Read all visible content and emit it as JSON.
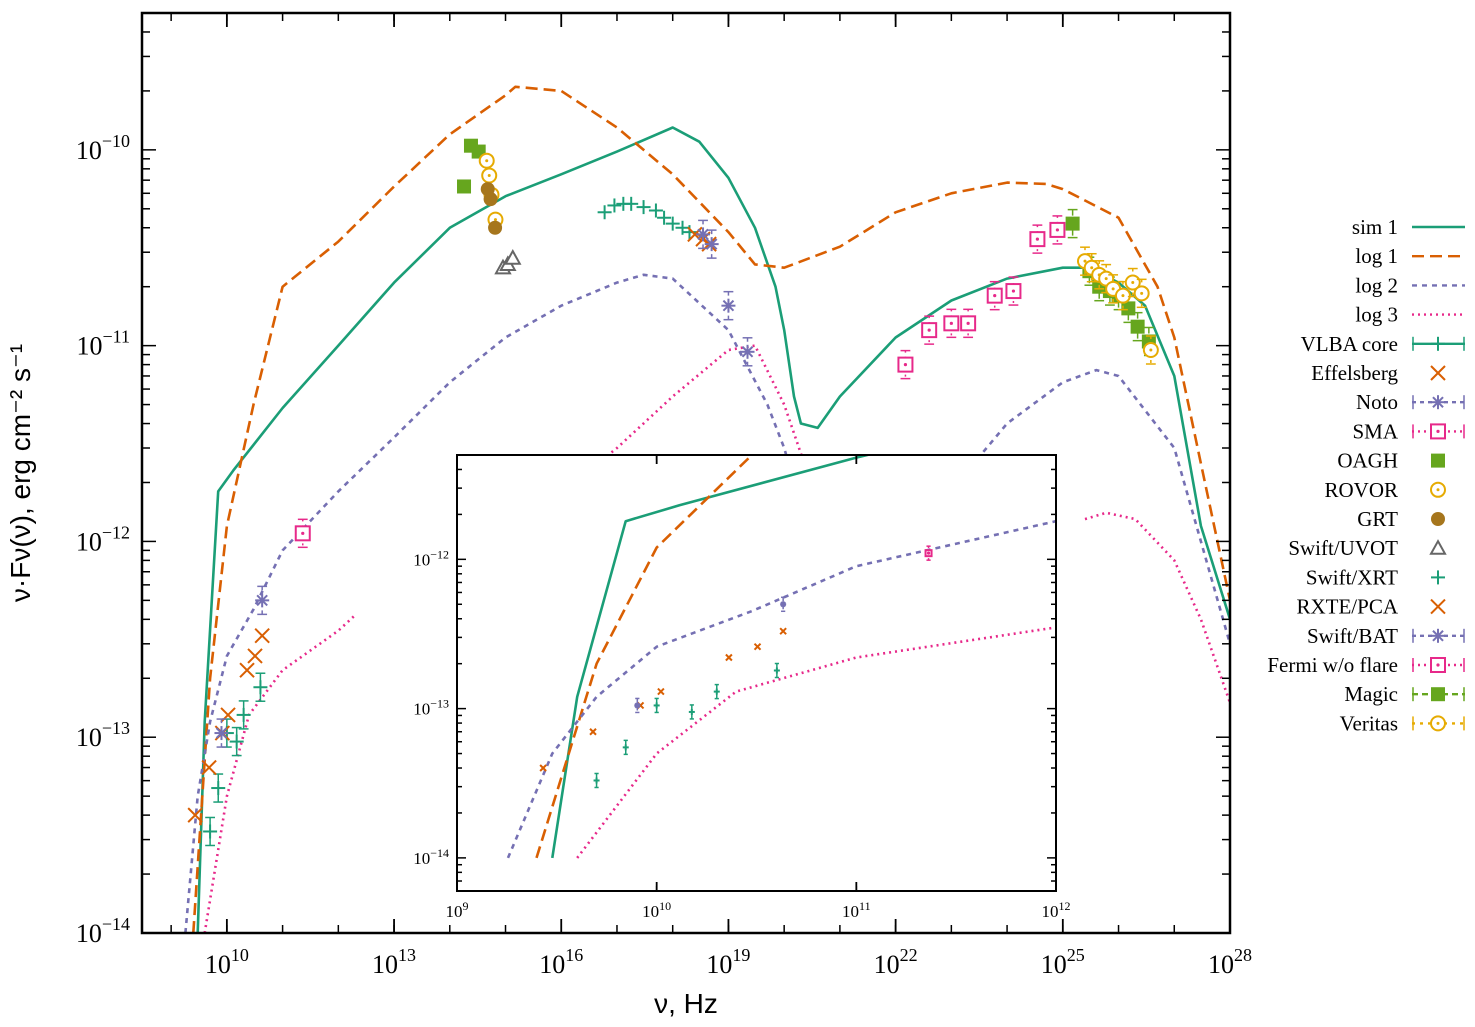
{
  "chart_data": {
    "type": "scatter",
    "xlabel": "ν, Hz",
    "ylabel": "ν·Fν(ν), erg cm⁻² s⁻¹",
    "x_scale": "log",
    "y_scale": "log",
    "xlim": [
      300000000.0,
      1e+28
    ],
    "ylim": [
      1e-14,
      5e-10
    ],
    "x_ticks": [
      {
        "v": 10000000000.0,
        "m": "10",
        "e": "10"
      },
      {
        "v": 10000000000000.0,
        "m": "10",
        "e": "13"
      },
      {
        "v": 1e+16,
        "m": "10",
        "e": "16"
      },
      {
        "v": 1e+19,
        "m": "10",
        "e": "19"
      },
      {
        "v": 1e+22,
        "m": "10",
        "e": "22"
      },
      {
        "v": 1e+25,
        "m": "10",
        "e": "25"
      },
      {
        "v": 1e+28,
        "m": "10",
        "e": "28"
      }
    ],
    "y_ticks": [
      {
        "v": 1e-14,
        "m": "10",
        "e": "−14"
      },
      {
        "v": 1e-13,
        "m": "10",
        "e": "−13"
      },
      {
        "v": 1e-12,
        "m": "10",
        "e": "−12"
      },
      {
        "v": 1e-11,
        "m": "10",
        "e": "−11"
      },
      {
        "v": 1e-10,
        "m": "10",
        "e": "−10"
      }
    ],
    "legend_position": "right, outside plot",
    "lines": [
      {
        "name": "sim 1",
        "color": "#1b9e77",
        "dash": "",
        "width": 2.6,
        "points": [
          [
            3000000000.0,
            1e-14
          ],
          [
            4000000000.0,
            1.2e-13
          ],
          [
            7000000000.0,
            1.8e-12
          ],
          [
            13000000000.0,
            2.3e-12
          ],
          [
            100000000000.0,
            4.8e-12
          ],
          [
            1000000000000.0,
            1e-11
          ],
          [
            10000000000000.0,
            2.1e-11
          ],
          [
            100000000000000.0,
            4e-11
          ],
          [
            1000000000000000.0,
            5.8e-11
          ],
          [
            1e+16,
            7.5e-11
          ],
          [
            1e+17,
            9.8e-11
          ],
          [
            1e+18,
            1.3e-10
          ],
          [
            3e+18,
            1.1e-10
          ],
          [
            1e+19,
            7.2e-11
          ],
          [
            3e+19,
            4e-11
          ],
          [
            7e+19,
            2e-11
          ],
          [
            1e+20,
            1.2e-11
          ],
          [
            1.5e+20,
            5.5e-12
          ],
          [
            2e+20,
            4e-12
          ],
          [
            4e+20,
            3.8e-12
          ],
          [
            1e+21,
            5.5e-12
          ],
          [
            1e+22,
            1.1e-11
          ],
          [
            1e+23,
            1.7e-11
          ],
          [
            1e+24,
            2.2e-11
          ],
          [
            1e+25,
            2.5e-11
          ],
          [
            3e+25,
            2.5e-11
          ],
          [
            1e+26,
            2.1e-11
          ],
          [
            3e+26,
            1.6e-11
          ],
          [
            1e+27,
            7e-12
          ],
          [
            3e+27,
            1.2e-12
          ],
          [
            1e+28,
            4e-13
          ]
        ]
      },
      {
        "name": "log 1",
        "color": "#d95f02",
        "dash": "12,6",
        "width": 2.6,
        "points": [
          [
            2500000000.0,
            1e-14
          ],
          [
            5000000000.0,
            2e-13
          ],
          [
            10000000000.0,
            1.2e-12
          ],
          [
            30000000000.0,
            5e-12
          ],
          [
            100000000000.0,
            2e-11
          ],
          [
            1000000000000.0,
            3.4e-11
          ],
          [
            10000000000000.0,
            6.5e-11
          ],
          [
            100000000000000.0,
            1.2e-10
          ],
          [
            1000000000000000.0,
            1.9e-10
          ],
          [
            1500000000000000.0,
            2.1e-10
          ],
          [
            1e+16,
            2e-10
          ],
          [
            1e+17,
            1.3e-10
          ],
          [
            1e+18,
            7.5e-11
          ],
          [
            1e+19,
            3.8e-11
          ],
          [
            3e+19,
            2.6e-11
          ],
          [
            1e+20,
            2.5e-11
          ],
          [
            1e+21,
            3.2e-11
          ],
          [
            1e+22,
            4.8e-11
          ],
          [
            1e+23,
            6e-11
          ],
          [
            1e+24,
            6.8e-11
          ],
          [
            5e+24,
            6.7e-11
          ],
          [
            1e+25,
            6.3e-11
          ],
          [
            1e+26,
            4.5e-11
          ],
          [
            5e+26,
            2e-11
          ],
          [
            1e+27,
            1.1e-11
          ],
          [
            3e+27,
            2.5e-12
          ],
          [
            1e+28,
            5e-13
          ]
        ]
      },
      {
        "name": "log 2",
        "color": "#7570b3",
        "dash": "5,5",
        "width": 2.6,
        "points": [
          [
            1800000000.0,
            1e-14
          ],
          [
            3000000000.0,
            5e-14
          ],
          [
            5000000000.0,
            1.2e-13
          ],
          [
            10000000000.0,
            2.6e-13
          ],
          [
            30000000000.0,
            4.5e-13
          ],
          [
            100000000000.0,
            9e-13
          ],
          [
            1000000000000.0,
            1.8e-12
          ],
          [
            10000000000000.0,
            3.4e-12
          ],
          [
            100000000000000.0,
            6.5e-12
          ],
          [
            1000000000000000.0,
            1.1e-11
          ],
          [
            1e+16,
            1.6e-11
          ],
          [
            1e+17,
            2.1e-11
          ],
          [
            3e+17,
            2.3e-11
          ],
          [
            1e+18,
            2.2e-11
          ],
          [
            1e+19,
            1.2e-11
          ],
          [
            5e+19,
            5e-12
          ],
          [
            1e+20,
            3e-12
          ],
          [
            1.5e+20,
            2e-12
          ],
          [
            2e+20,
            1.3e-12
          ],
          [
            2.6e+20,
            1e-12
          ]
        ]
      },
      {
        "name": "log 2",
        "color": "#7570b3",
        "dash": "5,5",
        "width": 2.6,
        "points": [
          [
            1.3e+23,
            2e-12
          ],
          [
            1e+24,
            4e-12
          ],
          [
            1e+25,
            6.5e-12
          ],
          [
            4e+25,
            7.5e-12
          ],
          [
            1e+26,
            7e-12
          ],
          [
            1e+27,
            3e-12
          ],
          [
            3e+27,
            1e-12
          ],
          [
            1e+28,
            3e-13
          ]
        ]
      },
      {
        "name": "log 3",
        "color": "#e7298a",
        "dash": "2,4",
        "width": 2.6,
        "points": [
          [
            4000000000.0,
            1e-14
          ],
          [
            10000000000.0,
            5e-14
          ],
          [
            25000000000.0,
            1.3e-13
          ],
          [
            100000000000.0,
            2.2e-13
          ],
          [
            1000000000000.0,
            3.5e-13
          ],
          [
            2000000000000.0,
            4.2e-13
          ]
        ]
      },
      {
        "name": "log 3",
        "color": "#e7298a",
        "dash": "2,4",
        "width": 2.6,
        "points": [
          [
            1.7e+16,
            2e-12
          ],
          [
            1e+17,
            3e-12
          ],
          [
            1e+18,
            5.5e-12
          ],
          [
            1e+19,
            9.5e-12
          ],
          [
            3e+19,
            1e-11
          ],
          [
            1e+20,
            5e-12
          ],
          [
            3e+20,
            2e-12
          ]
        ]
      },
      {
        "name": "log 3",
        "color": "#e7298a",
        "dash": "2,4",
        "width": 2.6,
        "points": [
          [
            2.5e+25,
            1.3e-12
          ],
          [
            6e+25,
            1.4e-12
          ],
          [
            2e+26,
            1.3e-12
          ],
          [
            1e+27,
            8e-13
          ],
          [
            3e+27,
            4e-13
          ],
          [
            1e+28,
            1.5e-13
          ]
        ]
      }
    ],
    "series": [
      {
        "name": "VLBA core",
        "color": "#1b9e77",
        "marker": "plus",
        "dash": "",
        "errbar": true,
        "points": [
          [
            5000000000.0,
            3.3e-14
          ],
          [
            7000000000.0,
            5.5e-14
          ],
          [
            10000000000.0,
            1.05e-13
          ],
          [
            15000000000.0,
            9.5e-14
          ],
          [
            20000000000.0,
            1.3e-13
          ],
          [
            40000000000.0,
            1.8e-13
          ]
        ]
      },
      {
        "name": "Effelsberg",
        "color": "#d95f02",
        "marker": "x",
        "dash": "",
        "errbar": false,
        "points": [
          [
            2700000000.0,
            4e-14
          ],
          [
            4800000000.0,
            7e-14
          ],
          [
            8300000000.0,
            1.05e-13
          ],
          [
            10500000000.0,
            1.3e-13
          ],
          [
            23000000000.0,
            2.2e-13
          ],
          [
            32000000000.0,
            2.6e-13
          ],
          [
            43000000000.0,
            3.3e-13
          ]
        ]
      },
      {
        "name": "Noto",
        "color": "#7570b3",
        "marker": "star",
        "dash": "4,4",
        "errbar": true,
        "points": [
          [
            8000000000.0,
            1.05e-13
          ],
          [
            43000000000.0,
            5e-13
          ]
        ]
      },
      {
        "name": "SMA",
        "color": "#e7298a",
        "marker": "sqdot",
        "dash": "2,4",
        "errbar": true,
        "points": [
          [
            230000000000.0,
            1.1e-12
          ]
        ]
      },
      {
        "name": "OAGH",
        "color": "#66a61e",
        "marker": "fsquare",
        "dash": "",
        "errbar": false,
        "points": [
          [
            180000000000000.0,
            6.5e-11
          ],
          [
            240000000000000.0,
            1.05e-10
          ],
          [
            330000000000000.0,
            9.8e-11
          ]
        ]
      },
      {
        "name": "ROVOR",
        "color": "#e6ab02",
        "marker": "ocircle",
        "dash": "",
        "errbar": false,
        "points": [
          [
            460000000000000.0,
            8.8e-11
          ],
          [
            510000000000000.0,
            7.4e-11
          ],
          [
            560000000000000.0,
            5.9e-11
          ],
          [
            660000000000000.0,
            4.4e-11
          ]
        ]
      },
      {
        "name": "GRT",
        "color": "#a6761d",
        "marker": "fcircle",
        "dash": "",
        "errbar": false,
        "points": [
          [
            480000000000000.0,
            6.3e-11
          ],
          [
            540000000000000.0,
            5.6e-11
          ],
          [
            650000000000000.0,
            4e-11
          ]
        ]
      },
      {
        "name": "Swift/UVOT",
        "color": "#666666",
        "marker": "triangle",
        "dash": "",
        "errbar": false,
        "points": [
          [
            900000000000000.0,
            2.5e-11
          ],
          [
            1100000000000000.0,
            2.6e-11
          ],
          [
            1350000000000000.0,
            2.8e-11
          ]
        ]
      },
      {
        "name": "Swift/XRT",
        "color": "#1b9e77",
        "marker": "plus",
        "dash": "",
        "errbar": false,
        "points": [
          [
            6e+16,
            4.8e-11
          ],
          [
            9e+16,
            5.2e-11
          ],
          [
            1.3e+17,
            5.3e-11
          ],
          [
            1.8e+17,
            5.3e-11
          ],
          [
            3e+17,
            5.1e-11
          ],
          [
            5e+17,
            4.9e-11
          ],
          [
            7e+17,
            4.5e-11
          ],
          [
            1e+18,
            4.2e-11
          ],
          [
            1.5e+18,
            4e-11
          ],
          [
            2e+18,
            3.8e-11
          ]
        ]
      },
      {
        "name": "RXTE/PCA",
        "color": "#d95f02",
        "marker": "x",
        "dash": "",
        "errbar": false,
        "points": [
          [
            2.5e+18,
            3.7e-11
          ],
          [
            3.5e+18,
            3.5e-11
          ],
          [
            4.5e+18,
            3.3e-11
          ]
        ]
      },
      {
        "name": "Swift/BAT",
        "color": "#7570b3",
        "marker": "star",
        "dash": "4,4",
        "errbar": true,
        "points": [
          [
            3.5e+18,
            3.7e-11
          ],
          [
            5e+18,
            3.3e-11
          ],
          [
            1e+19,
            1.6e-11
          ],
          [
            2.2e+19,
            9.3e-12
          ]
        ]
      },
      {
        "name": "Fermi w/o flare",
        "color": "#e7298a",
        "marker": "sqdot",
        "dash": "2,4",
        "errbar": true,
        "points": [
          [
            1.5e+22,
            8e-12
          ],
          [
            4e+22,
            1.2e-11
          ],
          [
            1e+23,
            1.3e-11
          ],
          [
            2e+23,
            1.3e-11
          ],
          [
            6e+23,
            1.8e-11
          ],
          [
            1.3e+24,
            1.9e-11
          ],
          [
            3.5e+24,
            3.5e-11
          ],
          [
            8e+24,
            3.9e-11
          ]
        ]
      },
      {
        "name": "Magic",
        "color": "#66a61e",
        "marker": "fsquare",
        "dash": "6,4",
        "errbar": true,
        "points": [
          [
            1.5e+25,
            4.2e-11
          ],
          [
            3e+25,
            2.4e-11
          ],
          [
            4.5e+25,
            2e-11
          ],
          [
            7e+25,
            1.9e-11
          ],
          [
            1e+26,
            1.8e-11
          ],
          [
            1.5e+26,
            1.55e-11
          ],
          [
            2.2e+26,
            1.25e-11
          ],
          [
            3.5e+26,
            1.05e-11
          ]
        ]
      },
      {
        "name": "Veritas",
        "color": "#e6ab02",
        "marker": "ocircle",
        "dash": "3,5",
        "errbar": true,
        "points": [
          [
            2.5e+25,
            2.7e-11
          ],
          [
            3.3e+25,
            2.5e-11
          ],
          [
            4.5e+25,
            2.3e-11
          ],
          [
            6e+25,
            2.2e-11
          ],
          [
            8e+25,
            1.95e-11
          ],
          [
            1.2e+26,
            1.8e-11
          ],
          [
            1.8e+26,
            2.1e-11
          ],
          [
            2.6e+26,
            1.85e-11
          ],
          [
            3.8e+26,
            9.5e-12
          ]
        ]
      }
    ],
    "inset": {
      "xlim": [
        1000000000.0,
        1000000000000.0
      ],
      "ylim": [
        6e-15,
        5e-12
      ],
      "x_ticks": [
        {
          "v": 1000000000.0,
          "m": "10",
          "e": "9"
        },
        {
          "v": 10000000000.0,
          "m": "10",
          "e": "10"
        },
        {
          "v": 100000000000.0,
          "m": "10",
          "e": "11"
        },
        {
          "v": 1000000000000.0,
          "m": "10",
          "e": "12"
        }
      ],
      "y_ticks": [
        {
          "v": 1e-14,
          "m": "10",
          "e": "−14"
        },
        {
          "v": 1e-13,
          "m": "10",
          "e": "−13"
        },
        {
          "v": 1e-12,
          "m": "10",
          "e": "−12"
        }
      ]
    }
  },
  "legend": [
    {
      "label": "sim 1",
      "color": "#1b9e77",
      "dash": "",
      "marker": "none"
    },
    {
      "label": "log 1",
      "color": "#d95f02",
      "dash": "12,6",
      "marker": "none"
    },
    {
      "label": "log 2",
      "color": "#7570b3",
      "dash": "5,5",
      "marker": "none"
    },
    {
      "label": "log 3",
      "color": "#e7298a",
      "dash": "2,4",
      "marker": "none"
    },
    {
      "label": "VLBA core",
      "color": "#1b9e77",
      "dash": "",
      "marker": "plus",
      "errbar": true
    },
    {
      "label": "Effelsberg",
      "color": "#d95f02",
      "dash": "none",
      "marker": "x"
    },
    {
      "label": "Noto",
      "color": "#7570b3",
      "dash": "4,4",
      "marker": "star",
      "errbar": true
    },
    {
      "label": "SMA",
      "color": "#e7298a",
      "dash": "2,4",
      "marker": "sqdot",
      "errbar": true
    },
    {
      "label": "OAGH",
      "color": "#66a61e",
      "dash": "none",
      "marker": "fsquare"
    },
    {
      "label": "ROVOR",
      "color": "#e6ab02",
      "dash": "none",
      "marker": "ocircle"
    },
    {
      "label": "GRT",
      "color": "#a6761d",
      "dash": "none",
      "marker": "fcircle"
    },
    {
      "label": "Swift/UVOT",
      "color": "#666666",
      "dash": "none",
      "marker": "triangle"
    },
    {
      "label": "Swift/XRT",
      "color": "#1b9e77",
      "dash": "none",
      "marker": "plus"
    },
    {
      "label": "RXTE/PCA",
      "color": "#d95f02",
      "dash": "none",
      "marker": "x"
    },
    {
      "label": "Swift/BAT",
      "color": "#7570b3",
      "dash": "4,4",
      "marker": "star",
      "errbar": true
    },
    {
      "label": "Fermi w/o flare",
      "color": "#e7298a",
      "dash": "2,4",
      "marker": "sqdot",
      "errbar": true
    },
    {
      "label": "Magic",
      "color": "#66a61e",
      "dash": "6,4",
      "marker": "fsquare",
      "errbar": true
    },
    {
      "label": "Veritas",
      "color": "#e6ab02",
      "dash": "3,5",
      "marker": "ocircle",
      "errbar": true
    }
  ]
}
